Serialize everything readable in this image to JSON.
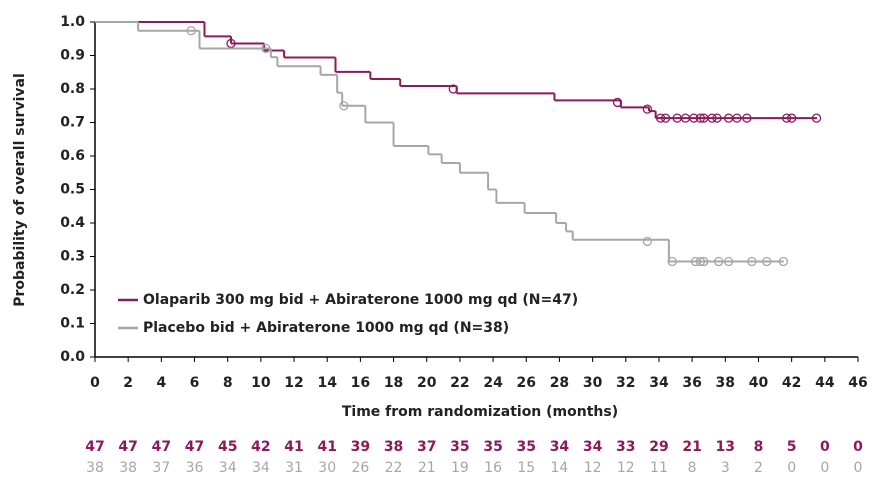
{
  "chart_data": {
    "type": "step",
    "xlabel": "Time from randomization (months)",
    "ylabel": "Probability of overall survival",
    "xlim": [
      0,
      46
    ],
    "ylim": [
      0,
      1
    ],
    "xticks": [
      0,
      2,
      4,
      6,
      8,
      10,
      12,
      14,
      16,
      18,
      20,
      22,
      24,
      26,
      28,
      30,
      32,
      34,
      36,
      38,
      40,
      42,
      44,
      46
    ],
    "yticks": [
      {
        "value": 0,
        "label": "0.0"
      },
      0.1,
      0.2,
      0.3,
      0.4,
      0.5,
      0.6,
      0.7,
      0.8,
      0.9,
      {
        "value": 1,
        "label": "1.0"
      }
    ],
    "legend": "lower left",
    "series": [
      {
        "name": "Olaparib 300 mg bid + Abiraterone 1000 mg qd (N=47)",
        "color": "#8b1a5c",
        "x": [
          0,
          6.6,
          8.2,
          10.2,
          11.4,
          14.5,
          16.6,
          18.4,
          21.8,
          27.7,
          31.7,
          33.4,
          33.8,
          43.5
        ],
        "values": [
          1,
          0.957,
          0.936,
          0.915,
          0.894,
          0.851,
          0.83,
          0.809,
          0.787,
          0.766,
          0.745,
          0.734,
          0.713,
          0.713
        ],
        "censored_x": [
          8.2,
          21.6,
          31.5,
          33.3,
          34.1,
          34.4,
          35.1,
          35.6,
          36.1,
          36.5,
          36.7,
          37.2,
          37.5,
          38.2,
          38.7,
          39.3,
          41.7,
          42.0,
          43.5
        ],
        "censored_y": [
          0.936,
          0.8,
          0.76,
          0.74,
          0.713,
          0.713,
          0.713,
          0.713,
          0.713,
          0.713,
          0.713,
          0.713,
          0.713,
          0.713,
          0.713,
          0.713,
          0.713,
          0.713,
          0.713
        ],
        "at_risk": [
          47,
          47,
          47,
          47,
          45,
          42,
          41,
          41,
          39,
          38,
          37,
          35,
          35,
          35,
          34,
          34,
          33,
          29,
          21,
          13,
          8,
          5,
          0,
          0
        ]
      },
      {
        "name": "Placebo bid + Abiraterone 1000 mg qd (N=38)",
        "color": "#a6a6a6",
        "x": [
          0,
          2.6,
          6.3,
          10.6,
          11.0,
          13.6,
          14.6,
          14.9,
          16.3,
          18.0,
          20.1,
          20.9,
          22.0,
          23.7,
          24.2,
          25.9,
          27.8,
          28.4,
          28.8,
          34.6,
          41.5
        ],
        "values": [
          1,
          0.974,
          0.921,
          0.895,
          0.868,
          0.842,
          0.789,
          0.75,
          0.7,
          0.63,
          0.605,
          0.579,
          0.55,
          0.5,
          0.46,
          0.43,
          0.4,
          0.375,
          0.35,
          0.285,
          0.285
        ],
        "censored_x": [
          5.8,
          10.3,
          15.0,
          33.3,
          34.8,
          36.2,
          36.5,
          36.7,
          37.6,
          38.2,
          39.6,
          40.5,
          41.5
        ],
        "censored_y": [
          0.974,
          0.921,
          0.75,
          0.345,
          0.285,
          0.285,
          0.285,
          0.285,
          0.285,
          0.285,
          0.285,
          0.285,
          0.285
        ],
        "at_risk": [
          38,
          38,
          37,
          36,
          34,
          34,
          31,
          30,
          26,
          22,
          21,
          19,
          16,
          15,
          14,
          12,
          12,
          11,
          8,
          3,
          2,
          0,
          0,
          0
        ]
      }
    ]
  }
}
